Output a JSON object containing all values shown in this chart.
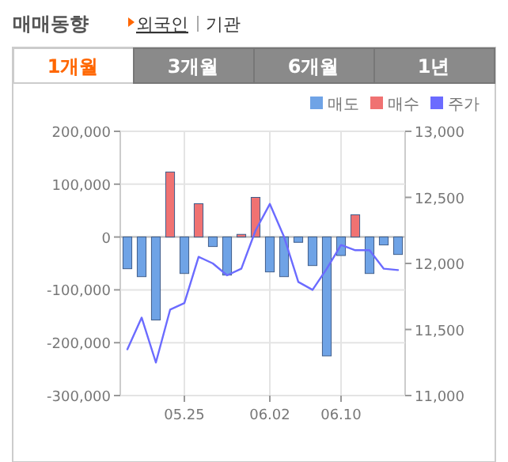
{
  "chart_data": {
    "type": "bar",
    "title": "매매동향",
    "annotations": [
      "외국인",
      "기관",
      "1개월",
      "3개월",
      "6개월",
      "1년"
    ],
    "categories": [
      null,
      null,
      null,
      null,
      "05.25",
      null,
      null,
      null,
      null,
      null,
      "06.02",
      null,
      null,
      null,
      null,
      "06.10",
      null,
      null,
      null,
      null
    ],
    "series": [
      {
        "name": "매도",
        "color": "#6fa3e6",
        "values": [
          -60000,
          -75000,
          -157000,
          0,
          -69000,
          0,
          -18000,
          -72000,
          0,
          0,
          -66000,
          -75000,
          -10000,
          -54000,
          -225000,
          -35000,
          0,
          -69000,
          -15000,
          -33000
        ]
      },
      {
        "name": "매수",
        "color": "#f07272",
        "values": [
          0,
          0,
          0,
          123000,
          0,
          63000,
          0,
          0,
          5000,
          75000,
          0,
          0,
          0,
          0,
          0,
          0,
          42000,
          0,
          0,
          0
        ]
      },
      {
        "name": "주가",
        "color": "#6b6bff",
        "type": "line",
        "axis": "y2",
        "values": [
          11350,
          11590,
          11250,
          11650,
          11700,
          12050,
          12000,
          11910,
          11960,
          12250,
          12450,
          12200,
          11860,
          11800,
          11960,
          12140,
          12100,
          12100,
          11960,
          11950
        ]
      }
    ],
    "ylim": [
      -300000,
      200000
    ],
    "yticks": [
      {
        "value": -300000,
        "label": "-300,000"
      },
      {
        "value": -200000,
        "label": "-200,000"
      },
      {
        "value": -100000,
        "label": "-100,000"
      },
      0,
      {
        "value": 100000,
        "label": "100,000"
      },
      {
        "value": 200000,
        "label": "200,000"
      }
    ],
    "y2lim": [
      11000,
      13000
    ],
    "y2ticks": [
      {
        "value": 11000,
        "label": "11,000"
      },
      {
        "value": 11500,
        "label": "11,500"
      },
      {
        "value": 12000,
        "label": "12,000"
      },
      {
        "value": 12500,
        "label": "12,500"
      },
      {
        "value": 13000,
        "label": "13,000"
      }
    ],
    "grid": true,
    "legend": "top right"
  }
}
